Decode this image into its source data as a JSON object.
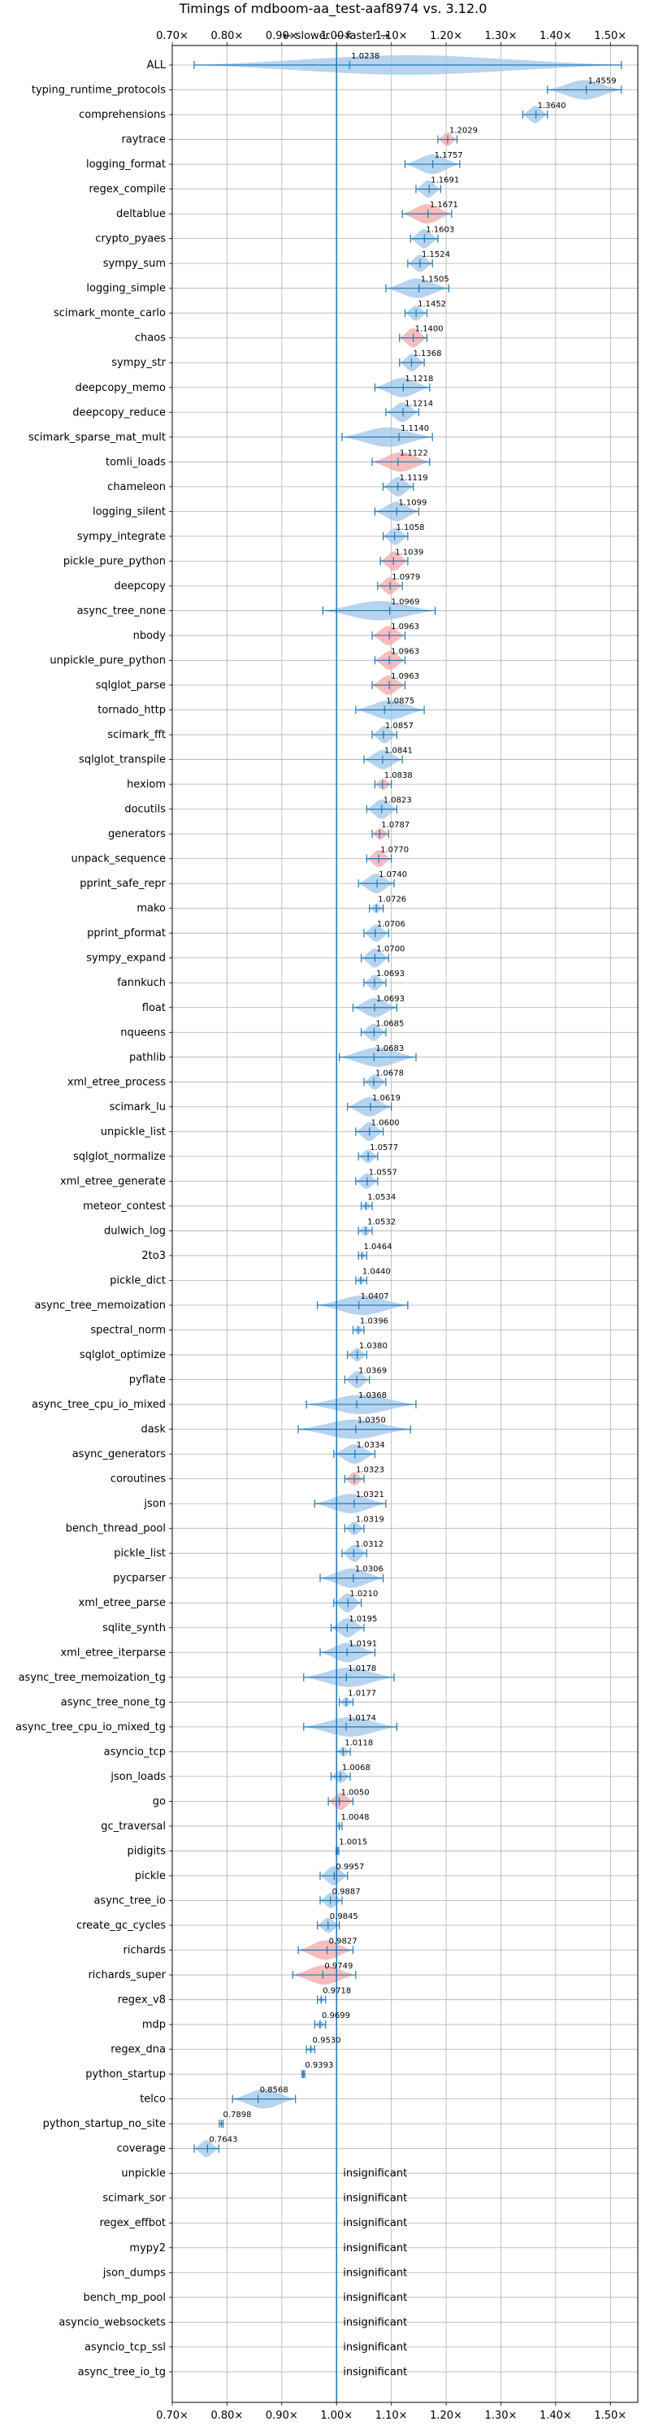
{
  "chart_data": {
    "type": "violin",
    "title": "Timings of mdboom-aa_test-aaf8974 vs. 3.12.0",
    "direction_left": "← slower",
    "direction_right": "faster →",
    "xlim": [
      0.7,
      1.55
    ],
    "x_ticks": [
      0.7,
      0.8,
      0.9,
      1.0,
      1.1,
      1.2,
      1.3,
      1.4,
      1.5
    ],
    "x_tick_labels": [
      "0.70×",
      "0.80×",
      "0.90×",
      "1.00×",
      "1.10×",
      "1.20×",
      "1.30×",
      "1.40×",
      "1.50×"
    ],
    "reference_line": 1.0,
    "grid": true,
    "colors": {
      "faster": "#9fc5e8",
      "slower": "#f4a7a7",
      "errorbar": "#1f77b4",
      "reference": "#1f77b4"
    },
    "insignificant_label": "insignificant",
    "benchmarks": [
      {
        "name": "ALL",
        "value": 1.0238,
        "lo": 0.74,
        "hi": 1.52,
        "slower": false
      },
      {
        "name": "typing_runtime_protocols",
        "value": 1.4559,
        "lo": 1.385,
        "hi": 1.52,
        "slower": false
      },
      {
        "name": "comprehensions",
        "value": 1.364,
        "lo": 1.34,
        "hi": 1.385,
        "slower": false
      },
      {
        "name": "raytrace",
        "value": 1.2029,
        "lo": 1.185,
        "hi": 1.22,
        "slower": true
      },
      {
        "name": "logging_format",
        "value": 1.1757,
        "lo": 1.125,
        "hi": 1.225,
        "slower": false
      },
      {
        "name": "regex_compile",
        "value": 1.1691,
        "lo": 1.145,
        "hi": 1.19,
        "slower": false
      },
      {
        "name": "deltablue",
        "value": 1.1671,
        "lo": 1.12,
        "hi": 1.21,
        "slower": true
      },
      {
        "name": "crypto_pyaes",
        "value": 1.1603,
        "lo": 1.135,
        "hi": 1.185,
        "slower": false
      },
      {
        "name": "sympy_sum",
        "value": 1.1524,
        "lo": 1.13,
        "hi": 1.175,
        "slower": false
      },
      {
        "name": "logging_simple",
        "value": 1.1505,
        "lo": 1.09,
        "hi": 1.205,
        "slower": false
      },
      {
        "name": "scimark_monte_carlo",
        "value": 1.1452,
        "lo": 1.125,
        "hi": 1.165,
        "slower": false
      },
      {
        "name": "chaos",
        "value": 1.14,
        "lo": 1.115,
        "hi": 1.165,
        "slower": true
      },
      {
        "name": "sympy_str",
        "value": 1.1368,
        "lo": 1.115,
        "hi": 1.16,
        "slower": false
      },
      {
        "name": "deepcopy_memo",
        "value": 1.1218,
        "lo": 1.07,
        "hi": 1.17,
        "slower": false
      },
      {
        "name": "deepcopy_reduce",
        "value": 1.1214,
        "lo": 1.09,
        "hi": 1.15,
        "slower": false
      },
      {
        "name": "scimark_sparse_mat_mult",
        "value": 1.114,
        "lo": 1.01,
        "hi": 1.175,
        "slower": false
      },
      {
        "name": "tomli_loads",
        "value": 1.1122,
        "lo": 1.065,
        "hi": 1.17,
        "slower": true
      },
      {
        "name": "chameleon",
        "value": 1.1119,
        "lo": 1.085,
        "hi": 1.14,
        "slower": false
      },
      {
        "name": "logging_silent",
        "value": 1.1099,
        "lo": 1.07,
        "hi": 1.15,
        "slower": false
      },
      {
        "name": "sympy_integrate",
        "value": 1.1058,
        "lo": 1.085,
        "hi": 1.13,
        "slower": false
      },
      {
        "name": "pickle_pure_python",
        "value": 1.1039,
        "lo": 1.08,
        "hi": 1.13,
        "slower": true
      },
      {
        "name": "deepcopy",
        "value": 1.0979,
        "lo": 1.075,
        "hi": 1.12,
        "slower": true
      },
      {
        "name": "async_tree_none",
        "value": 1.0969,
        "lo": 0.975,
        "hi": 1.18,
        "slower": false
      },
      {
        "name": "nbody",
        "value": 1.0963,
        "lo": 1.065,
        "hi": 1.125,
        "slower": true
      },
      {
        "name": "unpickle_pure_python",
        "value": 1.0963,
        "lo": 1.07,
        "hi": 1.125,
        "slower": true
      },
      {
        "name": "sqlglot_parse",
        "value": 1.0963,
        "lo": 1.065,
        "hi": 1.125,
        "slower": true
      },
      {
        "name": "tornado_http",
        "value": 1.0875,
        "lo": 1.035,
        "hi": 1.16,
        "slower": false
      },
      {
        "name": "scimark_fft",
        "value": 1.0857,
        "lo": 1.065,
        "hi": 1.11,
        "slower": false
      },
      {
        "name": "sqlglot_transpile",
        "value": 1.0841,
        "lo": 1.05,
        "hi": 1.12,
        "slower": false
      },
      {
        "name": "hexiom",
        "value": 1.0838,
        "lo": 1.07,
        "hi": 1.1,
        "slower": true
      },
      {
        "name": "docutils",
        "value": 1.0823,
        "lo": 1.055,
        "hi": 1.11,
        "slower": false
      },
      {
        "name": "generators",
        "value": 1.0787,
        "lo": 1.065,
        "hi": 1.095,
        "slower": true
      },
      {
        "name": "unpack_sequence",
        "value": 1.077,
        "lo": 1.055,
        "hi": 1.1,
        "slower": true
      },
      {
        "name": "pprint_safe_repr",
        "value": 1.074,
        "lo": 1.04,
        "hi": 1.105,
        "slower": false
      },
      {
        "name": "mako",
        "value": 1.0726,
        "lo": 1.06,
        "hi": 1.085,
        "slower": false
      },
      {
        "name": "pprint_pformat",
        "value": 1.0706,
        "lo": 1.05,
        "hi": 1.095,
        "slower": false
      },
      {
        "name": "sympy_expand",
        "value": 1.07,
        "lo": 1.045,
        "hi": 1.095,
        "slower": false
      },
      {
        "name": "fannkuch",
        "value": 1.0693,
        "lo": 1.05,
        "hi": 1.09,
        "slower": false
      },
      {
        "name": "float",
        "value": 1.0693,
        "lo": 1.03,
        "hi": 1.11,
        "slower": false
      },
      {
        "name": "nqueens",
        "value": 1.0685,
        "lo": 1.045,
        "hi": 1.09,
        "slower": false
      },
      {
        "name": "pathlib",
        "value": 1.0683,
        "lo": 1.005,
        "hi": 1.145,
        "slower": false
      },
      {
        "name": "xml_etree_process",
        "value": 1.0678,
        "lo": 1.05,
        "hi": 1.09,
        "slower": false
      },
      {
        "name": "scimark_lu",
        "value": 1.0619,
        "lo": 1.02,
        "hi": 1.1,
        "slower": false
      },
      {
        "name": "unpickle_list",
        "value": 1.06,
        "lo": 1.035,
        "hi": 1.085,
        "slower": false
      },
      {
        "name": "sqlglot_normalize",
        "value": 1.0577,
        "lo": 1.04,
        "hi": 1.075,
        "slower": false
      },
      {
        "name": "xml_etree_generate",
        "value": 1.0557,
        "lo": 1.035,
        "hi": 1.075,
        "slower": false
      },
      {
        "name": "meteor_contest",
        "value": 1.0534,
        "lo": 1.045,
        "hi": 1.065,
        "slower": false
      },
      {
        "name": "dulwich_log",
        "value": 1.0532,
        "lo": 1.04,
        "hi": 1.065,
        "slower": false
      },
      {
        "name": "2to3",
        "value": 1.0464,
        "lo": 1.04,
        "hi": 1.055,
        "slower": false
      },
      {
        "name": "pickle_dict",
        "value": 1.044,
        "lo": 1.035,
        "hi": 1.055,
        "slower": false
      },
      {
        "name": "async_tree_memoization",
        "value": 1.0407,
        "lo": 0.965,
        "hi": 1.13,
        "slower": false
      },
      {
        "name": "spectral_norm",
        "value": 1.0396,
        "lo": 1.03,
        "hi": 1.05,
        "slower": false
      },
      {
        "name": "sqlglot_optimize",
        "value": 1.038,
        "lo": 1.02,
        "hi": 1.055,
        "slower": false
      },
      {
        "name": "pyflate",
        "value": 1.0369,
        "lo": 1.015,
        "hi": 1.06,
        "slower": false
      },
      {
        "name": "async_tree_cpu_io_mixed",
        "value": 1.0368,
        "lo": 0.945,
        "hi": 1.145,
        "slower": false
      },
      {
        "name": "dask",
        "value": 1.035,
        "lo": 0.93,
        "hi": 1.135,
        "slower": false
      },
      {
        "name": "async_generators",
        "value": 1.0334,
        "lo": 0.995,
        "hi": 1.07,
        "slower": false
      },
      {
        "name": "coroutines",
        "value": 1.0323,
        "lo": 1.015,
        "hi": 1.05,
        "slower": true
      },
      {
        "name": "json",
        "value": 1.0321,
        "lo": 0.96,
        "hi": 1.09,
        "slower": false
      },
      {
        "name": "bench_thread_pool",
        "value": 1.0319,
        "lo": 1.015,
        "hi": 1.05,
        "slower": false
      },
      {
        "name": "pickle_list",
        "value": 1.0312,
        "lo": 1.01,
        "hi": 1.055,
        "slower": false
      },
      {
        "name": "pycparser",
        "value": 1.0306,
        "lo": 0.97,
        "hi": 1.085,
        "slower": false
      },
      {
        "name": "xml_etree_parse",
        "value": 1.021,
        "lo": 0.995,
        "hi": 1.045,
        "slower": false
      },
      {
        "name": "sqlite_synth",
        "value": 1.0195,
        "lo": 0.99,
        "hi": 1.05,
        "slower": false
      },
      {
        "name": "xml_etree_iterparse",
        "value": 1.0191,
        "lo": 0.97,
        "hi": 1.07,
        "slower": false
      },
      {
        "name": "async_tree_memoization_tg",
        "value": 1.0178,
        "lo": 0.94,
        "hi": 1.105,
        "slower": false
      },
      {
        "name": "async_tree_none_tg",
        "value": 1.0177,
        "lo": 1.005,
        "hi": 1.03,
        "slower": false
      },
      {
        "name": "async_tree_cpu_io_mixed_tg",
        "value": 1.0174,
        "lo": 0.94,
        "hi": 1.11,
        "slower": false
      },
      {
        "name": "asyncio_tcp",
        "value": 1.0118,
        "lo": 1.0,
        "hi": 1.025,
        "slower": false
      },
      {
        "name": "json_loads",
        "value": 1.0068,
        "lo": 0.99,
        "hi": 1.025,
        "slower": false
      },
      {
        "name": "go",
        "value": 1.005,
        "lo": 0.985,
        "hi": 1.03,
        "slower": true
      },
      {
        "name": "gc_traversal",
        "value": 1.0048,
        "lo": 1.0,
        "hi": 1.01,
        "slower": false
      },
      {
        "name": "pidigits",
        "value": 1.0015,
        "lo": 0.999,
        "hi": 1.004,
        "slower": false
      },
      {
        "name": "pickle",
        "value": 0.9957,
        "lo": 0.97,
        "hi": 1.02,
        "slower": false
      },
      {
        "name": "async_tree_io",
        "value": 0.9887,
        "lo": 0.97,
        "hi": 1.01,
        "slower": false
      },
      {
        "name": "create_gc_cycles",
        "value": 0.9845,
        "lo": 0.965,
        "hi": 1.005,
        "slower": false
      },
      {
        "name": "richards",
        "value": 0.9827,
        "lo": 0.93,
        "hi": 1.03,
        "slower": true
      },
      {
        "name": "richards_super",
        "value": 0.9749,
        "lo": 0.92,
        "hi": 1.035,
        "slower": true
      },
      {
        "name": "regex_v8",
        "value": 0.9718,
        "lo": 0.965,
        "hi": 0.98,
        "slower": false
      },
      {
        "name": "mdp",
        "value": 0.9699,
        "lo": 0.96,
        "hi": 0.98,
        "slower": false
      },
      {
        "name": "regex_dna",
        "value": 0.953,
        "lo": 0.945,
        "hi": 0.96,
        "slower": false
      },
      {
        "name": "python_startup",
        "value": 0.9393,
        "lo": 0.937,
        "hi": 0.942,
        "slower": false
      },
      {
        "name": "telco",
        "value": 0.8568,
        "lo": 0.81,
        "hi": 0.925,
        "slower": false
      },
      {
        "name": "python_startup_no_site",
        "value": 0.7898,
        "lo": 0.786,
        "hi": 0.793,
        "slower": false
      },
      {
        "name": "coverage",
        "value": 0.7643,
        "lo": 0.74,
        "hi": 0.785,
        "slower": false
      },
      {
        "name": "unpickle",
        "insignificant": true
      },
      {
        "name": "scimark_sor",
        "insignificant": true
      },
      {
        "name": "regex_effbot",
        "insignificant": true
      },
      {
        "name": "mypy2",
        "insignificant": true
      },
      {
        "name": "json_dumps",
        "insignificant": true
      },
      {
        "name": "bench_mp_pool",
        "insignificant": true
      },
      {
        "name": "asyncio_websockets",
        "insignificant": true
      },
      {
        "name": "asyncio_tcp_ssl",
        "insignificant": true
      },
      {
        "name": "async_tree_io_tg",
        "insignificant": true
      }
    ]
  }
}
